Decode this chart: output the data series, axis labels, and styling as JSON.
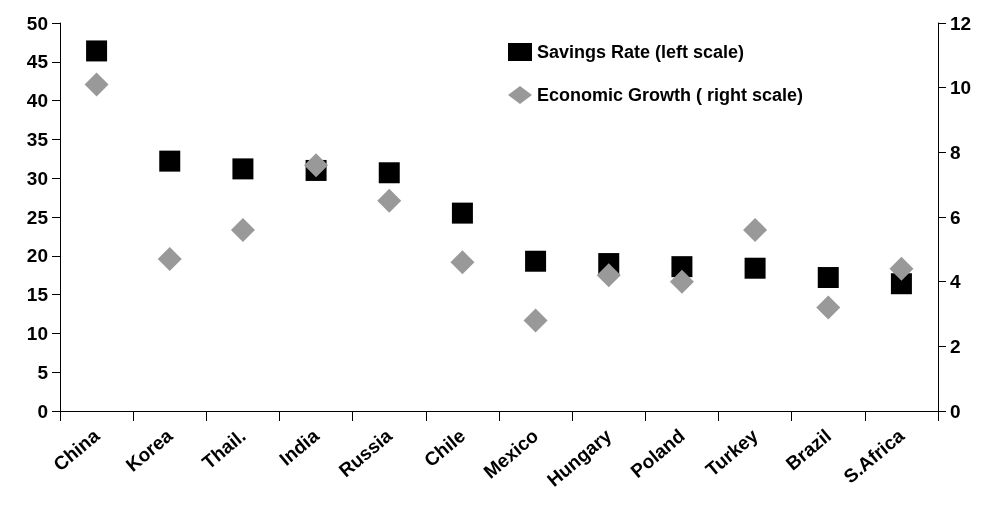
{
  "chart_data": {
    "type": "scatter",
    "categories": [
      "China",
      "Korea",
      "Thail.",
      "India",
      "Russia",
      "Chile",
      "Mexico",
      "Hungary",
      "Poland",
      "Turkey",
      "Brazil",
      "S.Africa"
    ],
    "series": [
      {
        "name": "Savings Rate (left scale)",
        "color": "#000000",
        "marker": "square",
        "values": [
          46.4,
          32.2,
          31.2,
          31.0,
          30.7,
          25.5,
          19.3,
          19.0,
          18.6,
          18.4,
          17.2,
          16.4
        ]
      },
      {
        "name": "Economic Growth ( right scale)",
        "color": "#999999",
        "marker": "diamond",
        "axis": "y2",
        "values": [
          10.1,
          4.7,
          5.6,
          7.6,
          6.5,
          4.6,
          2.8,
          4.2,
          4.0,
          5.6,
          3.2,
          4.4
        ]
      }
    ],
    "ylim": [
      0,
      50
    ],
    "yticks": [
      0,
      5,
      10,
      15,
      20,
      25,
      30,
      35,
      40,
      45,
      50
    ],
    "y2lim": [
      0,
      12
    ],
    "y2ticks": [
      0,
      2,
      4,
      6,
      8,
      10,
      12
    ],
    "grid": false,
    "legend": "top right"
  }
}
